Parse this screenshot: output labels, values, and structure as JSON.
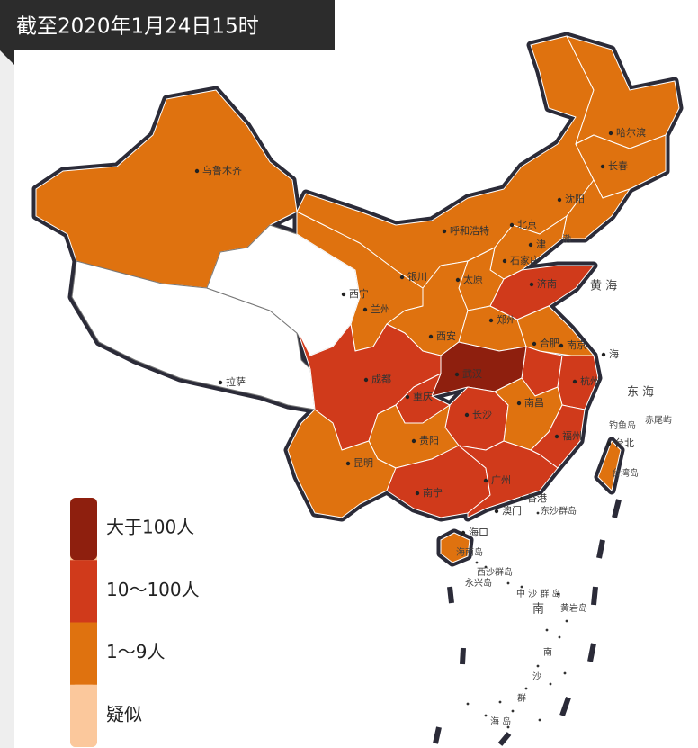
{
  "header": {
    "title": "截至2020年1月24日15时"
  },
  "legend": [
    {
      "label": "大于100人",
      "color": "#8e1f0e"
    },
    {
      "label": "10～100人",
      "color": "#d03a1b"
    },
    {
      "label": "1～9人",
      "color": "#df720f"
    },
    {
      "label": "疑似",
      "color": "#fbc89c"
    }
  ],
  "cities": [
    "乌鲁木齐",
    "哈尔滨",
    "长春",
    "沈阳",
    "北京",
    "津",
    "呼和浩特",
    "石家庄",
    "太原",
    "济南",
    "西宁",
    "兰州",
    "银川",
    "郑州",
    "西安",
    "合肥",
    "南京",
    "海",
    "武汉",
    "杭州",
    "成都",
    "重庆",
    "长沙",
    "南昌",
    "拉萨",
    "贵阳",
    "福州",
    "台北",
    "昆明",
    "南宁",
    "广州",
    "香港",
    "澳门",
    "海口"
  ],
  "places": [
    "黄 海",
    "东 海",
    "渤",
    "钓鱼岛",
    "赤尾屿",
    "台湾岛",
    "东沙群岛",
    "海南岛",
    "西沙群岛",
    "永兴岛",
    "中 沙 群 岛",
    "南",
    "黄岩岛",
    "南",
    "沙",
    "群",
    "海 岛"
  ]
}
